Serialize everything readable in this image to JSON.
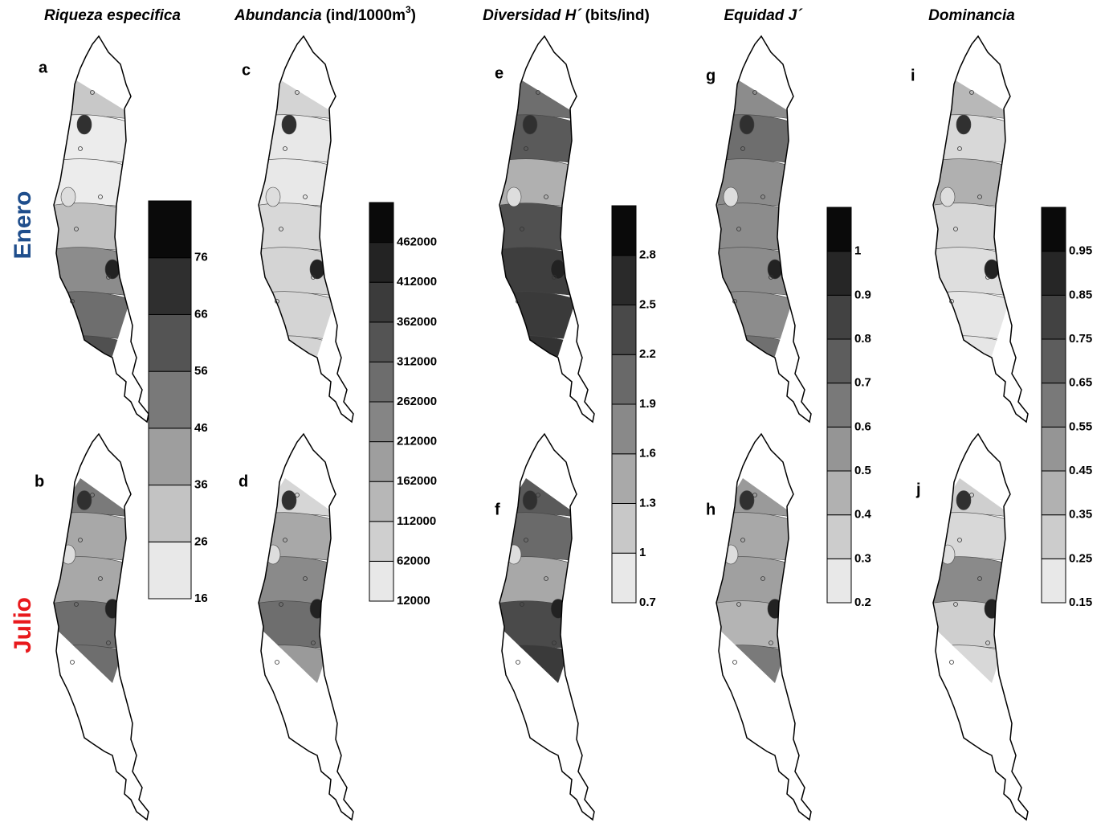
{
  "columns": [
    {
      "title": "Riqueza especifica",
      "panels": [
        "a",
        "b"
      ],
      "legend": [
        16,
        26,
        36,
        46,
        56,
        66,
        76
      ]
    },
    {
      "title": "Abundancia",
      "unit": "(ind/1000m",
      "unit_sup": "3",
      "unit_end": ")",
      "panels": [
        "c",
        "d"
      ],
      "legend": [
        12000,
        62000,
        112000,
        162000,
        212000,
        262000,
        312000,
        362000,
        412000,
        462000
      ]
    },
    {
      "title": "Diversidad H´",
      "unit": "(bits/ind)",
      "panels": [
        "e",
        "f"
      ],
      "legend": [
        0.7,
        1,
        1.3,
        1.6,
        1.9,
        2.2,
        2.5,
        2.8
      ]
    },
    {
      "title": "Equidad J´",
      "panels": [
        "g",
        "h"
      ],
      "legend": [
        0.2,
        0.3,
        0.4,
        0.5,
        0.6,
        0.7,
        0.8,
        0.9,
        1
      ]
    },
    {
      "title": "Dominancia",
      "panels": [
        "i",
        "j"
      ],
      "legend": [
        0.15,
        0.25,
        0.35,
        0.45,
        0.55,
        0.65,
        0.75,
        0.85,
        0.95
      ]
    }
  ],
  "rows": [
    "Enero",
    "Julio"
  ]
}
